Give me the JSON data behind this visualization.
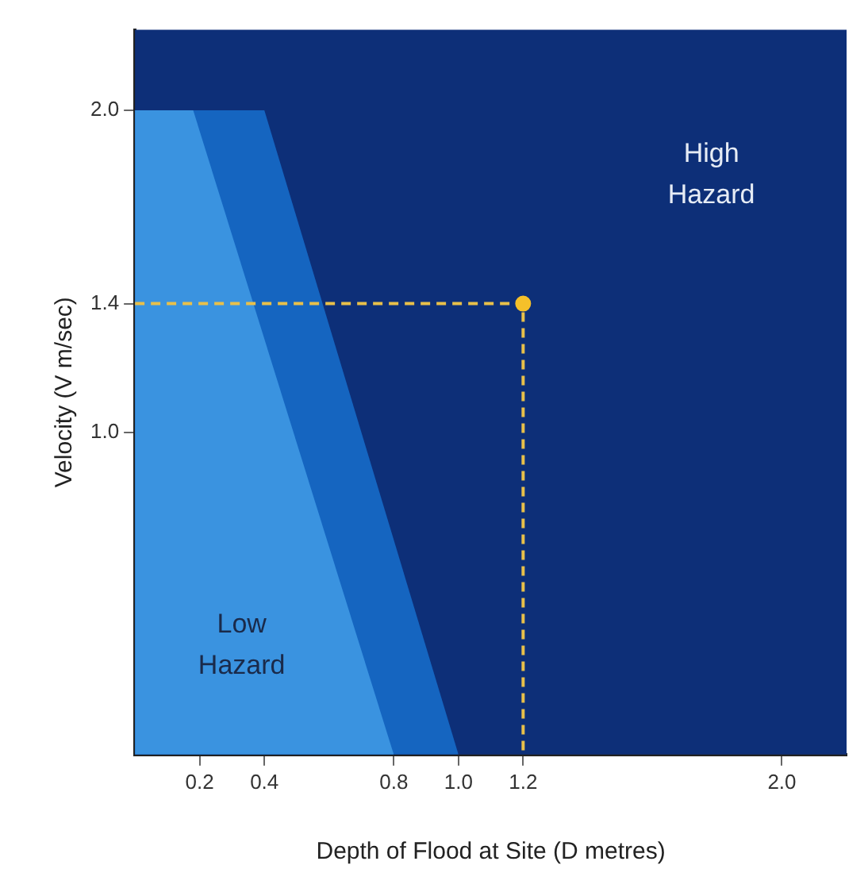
{
  "chart_data": {
    "type": "area",
    "xlabel": "Depth of Flood at Site (D metres)",
    "ylabel": "Velocity (V m/sec)",
    "xlim": [
      0,
      2.2
    ],
    "ylim": [
      0,
      2.25
    ],
    "xticks": [
      0.2,
      0.4,
      0.8,
      {
        "value": 1,
        "label": "1.0"
      },
      1.2,
      {
        "value": 2,
        "label": "2.0"
      }
    ],
    "yticks": [
      {
        "value": 1,
        "label": "1.0"
      },
      1.4,
      {
        "value": 2,
        "label": "2.0"
      }
    ],
    "series": [
      {
        "color": "#3a93e0",
        "x": [
          0,
          0.18,
          0.8
        ],
        "values": [
          2.0,
          2.0,
          0
        ]
      },
      {
        "color": "#1565c0",
        "x": [
          0,
          0.4,
          1.0
        ],
        "values": [
          2.0,
          2.0,
          0
        ]
      },
      {
        "type": "line",
        "color": "#e8c04a",
        "line_style": "dashed",
        "marker": "none",
        "x": [
          0,
          1.2,
          1.2
        ],
        "values": [
          1.4,
          1.4,
          0
        ]
      },
      {
        "type": "scatter",
        "color": "#f5c02a",
        "marker": "circle",
        "x": [
          1.2
        ],
        "values": [
          1.4
        ]
      }
    ],
    "bands": [
      {
        "axis": "x",
        "from": 0,
        "to": 2.2,
        "label": "High Hazard",
        "color": "#0d2f78"
      }
    ],
    "annotations": [
      "Low Hazard"
    ]
  }
}
